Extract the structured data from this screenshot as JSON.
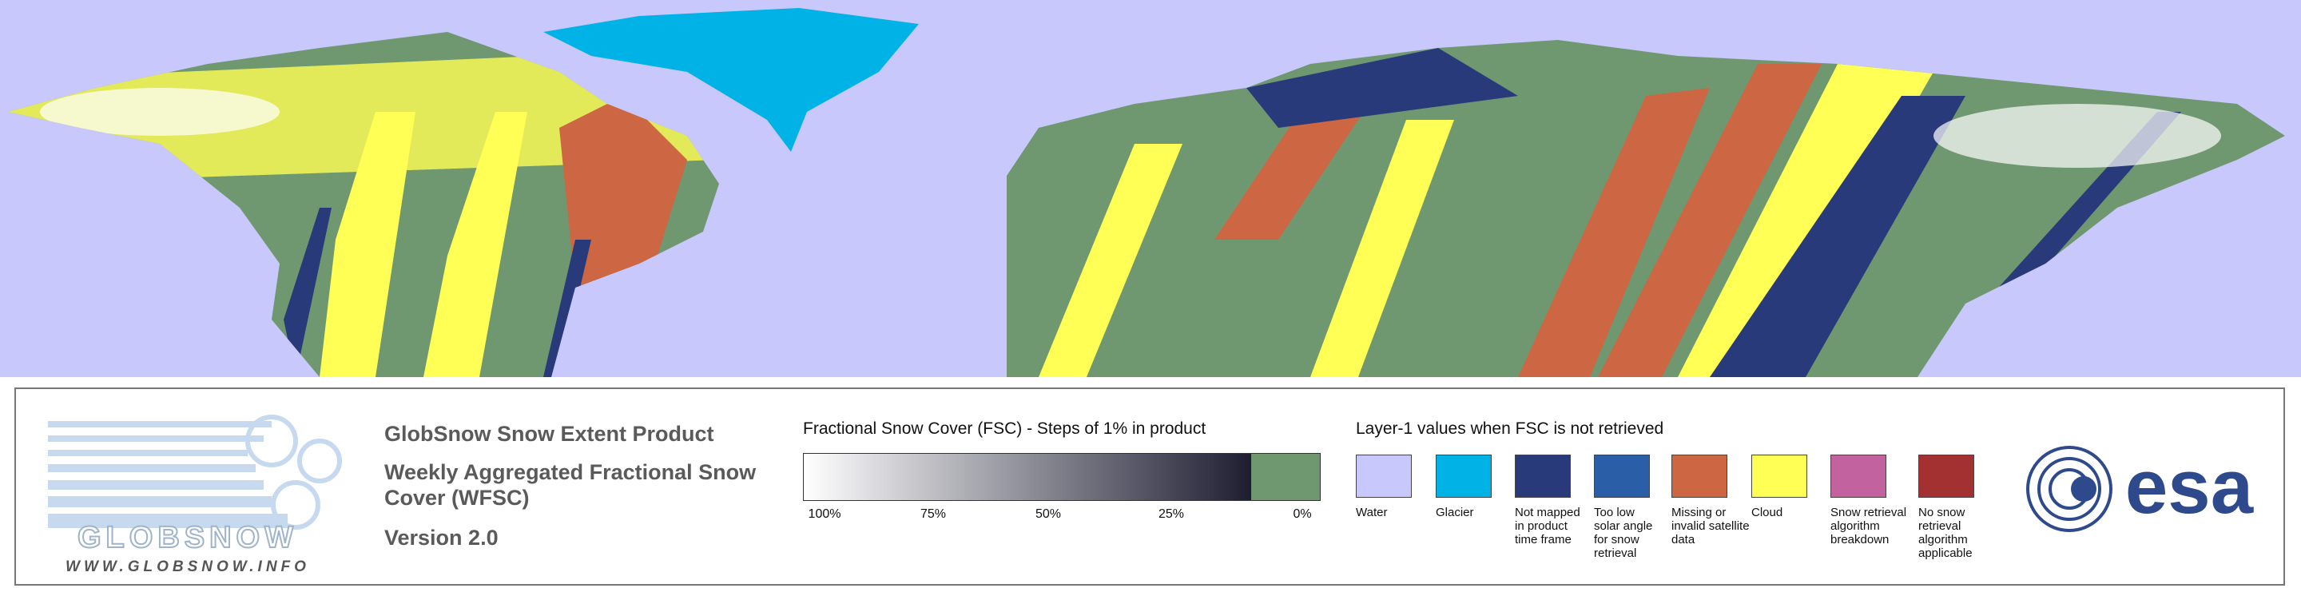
{
  "logo": {
    "name": "GLOBSNOW",
    "url": "WWW.GLOBSNOW.INFO"
  },
  "product": {
    "title": "GlobSnow Snow Extent Product",
    "subtitle": "Weekly Aggregated Fractional Snow Cover (WFSC)",
    "version": "Version 2.0"
  },
  "fsc_legend": {
    "title": "Fractional Snow Cover (FSC) - Steps of 1% in product",
    "ticks": [
      "100%",
      "75%",
      "50%",
      "25%",
      "0%"
    ],
    "gradient_start": "#ffffff",
    "gradient_end": "#1e1e32",
    "no_snow_color": "#6f9870"
  },
  "layer_legend": {
    "title": "Layer-1 values when FSC is not retrieved",
    "items": [
      {
        "label": "Water",
        "color": "#c8c8fc"
      },
      {
        "label": "Glacier",
        "color": "#00b2e6"
      },
      {
        "label": "Not mapped in product time frame",
        "color": "#283a7a"
      },
      {
        "label": "Too low solar angle for snow retrieval",
        "color": "#2a5fa8"
      },
      {
        "label": "Missing or invalid satellite data",
        "color": "#cd6642"
      },
      {
        "label": "Cloud",
        "color": "#ffff55"
      },
      {
        "label": "Snow retrieval algorithm breakdown",
        "color": "#c263a0"
      },
      {
        "label": "No snow retrieval algorithm applicable",
        "color": "#a33131"
      }
    ]
  },
  "agency": {
    "name": "esa"
  }
}
